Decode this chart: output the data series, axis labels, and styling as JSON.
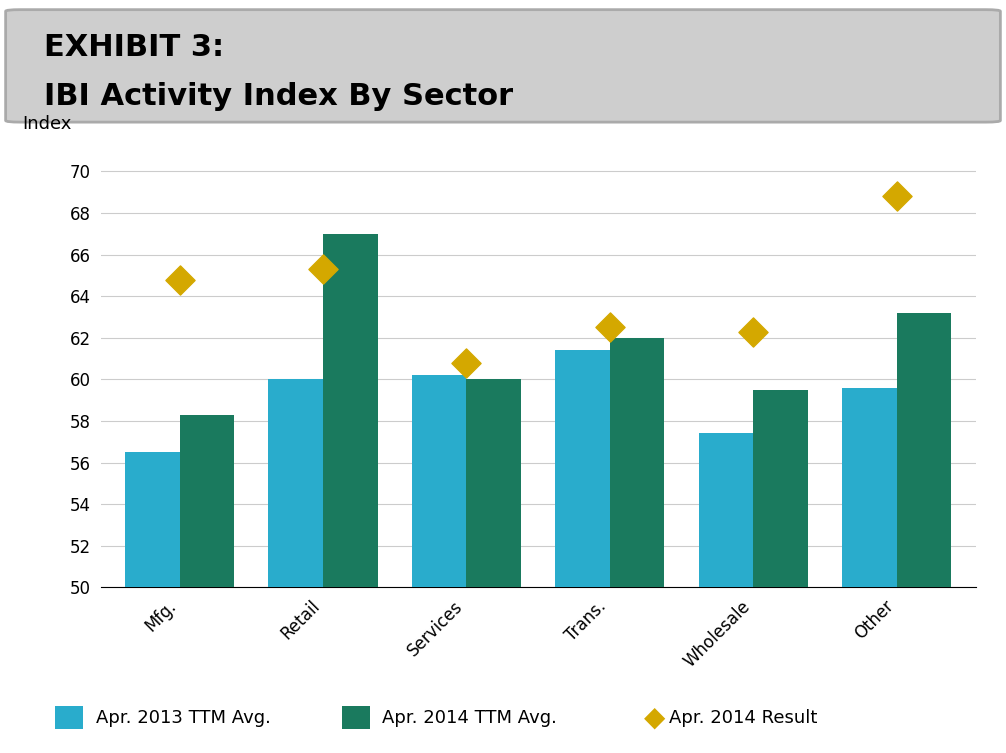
{
  "title_line1": "EXHIBIT 3:",
  "title_line2": "IBI Activity Index By Sector",
  "categories": [
    "Mfg.",
    "Retail",
    "Services",
    "Trans.",
    "Wholesale",
    "Other"
  ],
  "apr2013_ttm": [
    56.5,
    60.0,
    60.2,
    61.4,
    57.4,
    59.6
  ],
  "apr2014_ttm": [
    58.3,
    67.0,
    60.0,
    62.0,
    59.5,
    63.2
  ],
  "apr2014_result": [
    64.8,
    65.3,
    60.8,
    62.5,
    62.3,
    68.8
  ],
  "color_2013": "#29ACCC",
  "color_2014": "#1A7A5E",
  "color_result": "#D4A800",
  "ylabel": "Index",
  "ylim_min": 50,
  "ylim_max": 71,
  "yticks": [
    50,
    52,
    54,
    56,
    58,
    60,
    62,
    64,
    66,
    68,
    70
  ],
  "bar_width": 0.38,
  "title_fontsize": 22,
  "tick_fontsize": 12,
  "legend_fontsize": 13,
  "header_bg_color": "#CECECE",
  "bg_color": "#FFFFFF"
}
